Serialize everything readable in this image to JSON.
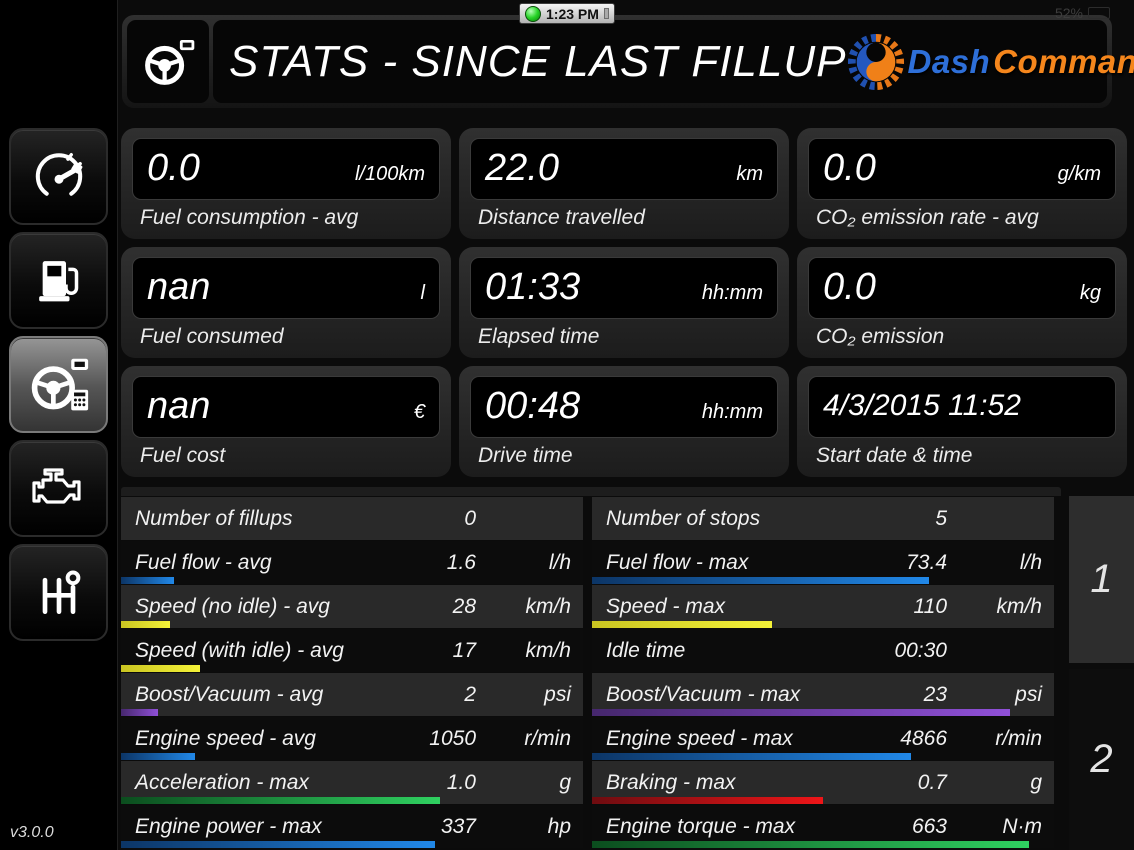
{
  "status_bar": {
    "time": "1:23 PM",
    "battery": "52%"
  },
  "header": {
    "title": "STATS - SINCE LAST FILLUP",
    "logo_dash": "Dash",
    "logo_command": "Command",
    "logo_dash_color": "#2e6fd8",
    "logo_command_color": "#f5861c"
  },
  "sidebar": {
    "version": "v3.0.0",
    "items": [
      {
        "name": "gauges",
        "icon": "gauge-icon",
        "selected": false
      },
      {
        "name": "fuel",
        "icon": "fuel-pump-icon",
        "selected": false
      },
      {
        "name": "trip-stats",
        "icon": "steering-wheel-icon",
        "selected": true
      },
      {
        "name": "engine",
        "icon": "engine-icon",
        "selected": false
      },
      {
        "name": "transmission",
        "icon": "gear-shifter-icon",
        "selected": false
      }
    ]
  },
  "cards": [
    {
      "value": "0.0",
      "unit": "l/100km",
      "label": "Fuel consumption - avg"
    },
    {
      "value": "22.0",
      "unit": "km",
      "label": "Distance travelled"
    },
    {
      "value": "0.0",
      "unit": "g/km",
      "label": "CO₂ emission rate - avg"
    },
    {
      "value": "nan",
      "unit": "l",
      "label": "Fuel consumed"
    },
    {
      "value": "01:33",
      "unit": "hh:mm",
      "label": "Elapsed time"
    },
    {
      "value": "0.0",
      "unit": "kg",
      "label": "CO₂ emission"
    },
    {
      "value": "nan",
      "unit": "€",
      "label": "Fuel cost"
    },
    {
      "value": "00:48",
      "unit": "hh:mm",
      "label": "Drive time"
    },
    {
      "value": "4/3/2015 11:52",
      "unit": "",
      "label": "Start date & time"
    }
  ],
  "table": {
    "left_rows": [
      {
        "label": "Number of fillups",
        "value": "0",
        "unit": "",
        "bar": null
      },
      {
        "label": "Fuel flow - avg",
        "value": "1.6",
        "unit": "l/h",
        "bar": {
          "color": "blue",
          "percent": 11.5,
          "from": "#0c3566",
          "to": "#2188e8"
        }
      },
      {
        "label": "Speed (no idle) - avg",
        "value": "28",
        "unit": "km/h",
        "bar": {
          "color": "yellow",
          "percent": 10.5,
          "from": "#c9c421",
          "to": "#f4f238"
        }
      },
      {
        "label": "Speed (with idle) - avg",
        "value": "17",
        "unit": "km/h",
        "bar": {
          "color": "yellow",
          "percent": 17,
          "from": "#c9c421",
          "to": "#f4f238"
        }
      },
      {
        "label": "Boost/Vacuum - avg",
        "value": "2",
        "unit": "psi",
        "bar": {
          "color": "purple",
          "percent": 8,
          "from": "#46276e",
          "to": "#9050d8"
        }
      },
      {
        "label": "Engine speed - avg",
        "value": "1050",
        "unit": "r/min",
        "bar": {
          "color": "blue",
          "percent": 16,
          "from": "#0c3566",
          "to": "#2188e8"
        }
      },
      {
        "label": "Acceleration - max",
        "value": "1.0",
        "unit": "g",
        "bar": {
          "color": "green",
          "percent": 69,
          "from": "#0b4d1e",
          "to": "#2fd060"
        }
      },
      {
        "label": "Engine power - max",
        "value": "337",
        "unit": "hp",
        "bar": {
          "color": "blue",
          "percent": 68,
          "from": "#0c3566",
          "to": "#2188e8"
        }
      }
    ],
    "right_rows": [
      {
        "label": "Number of stops",
        "value": "5",
        "unit": "",
        "bar": null
      },
      {
        "label": "Fuel flow - max",
        "value": "73.4",
        "unit": "l/h",
        "bar": {
          "color": "blue",
          "percent": 73,
          "from": "#0c3566",
          "to": "#2188e8"
        }
      },
      {
        "label": "Speed - max",
        "value": "110",
        "unit": "km/h",
        "bar": {
          "color": "yellow",
          "percent": 39,
          "from": "#c9c421",
          "to": "#f4f238"
        }
      },
      {
        "label": "Idle time",
        "value": "00:30",
        "unit": "",
        "bar": null
      },
      {
        "label": "Boost/Vacuum - max",
        "value": "23",
        "unit": "psi",
        "bar": {
          "color": "purple",
          "percent": 90.5,
          "from": "#46276e",
          "to": "#9050d8"
        }
      },
      {
        "label": "Engine speed - max",
        "value": "4866",
        "unit": "r/min",
        "bar": {
          "color": "blue",
          "percent": 69,
          "from": "#0c3566",
          "to": "#2188e8"
        }
      },
      {
        "label": "Braking - max",
        "value": "0.7",
        "unit": "g",
        "bar": {
          "color": "red",
          "percent": 50,
          "from": "#6e0c10",
          "to": "#ee1518"
        }
      },
      {
        "label": "Engine torque - max",
        "value": "663",
        "unit": "N·m",
        "bar": {
          "color": "green",
          "percent": 94.5,
          "from": "#0b4d1e",
          "to": "#2fd060"
        }
      }
    ]
  },
  "pager": {
    "pages": [
      "1",
      "2"
    ],
    "selected": "1"
  }
}
